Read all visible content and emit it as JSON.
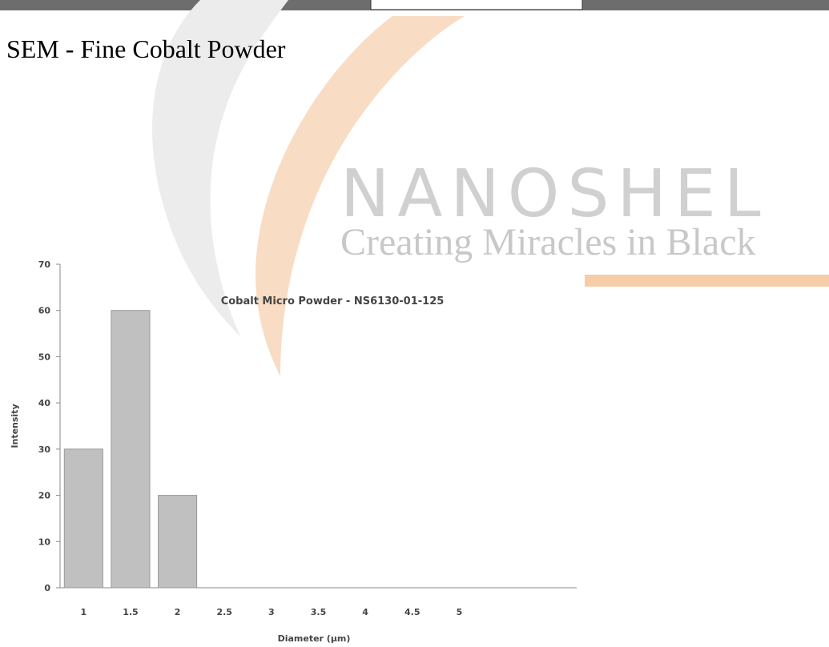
{
  "heading": "SEM - Fine Cobalt Powder",
  "watermark": {
    "brand": "NANOSHEL",
    "tagline": "Creating Miracles in Black"
  },
  "chart_data": {
    "type": "bar",
    "title": "Cobalt Micro Powder - NS6130-01-125",
    "x_label": "Diameter (µm)",
    "y_label": "Intensity",
    "categories": [
      "1",
      "1.5",
      "2",
      "2.5",
      "3",
      "3.5",
      "4",
      "4.5",
      "5",
      null,
      null
    ],
    "values": [
      30,
      60,
      20,
      0,
      0,
      0,
      0,
      0,
      0,
      null,
      null
    ],
    "color": "#c0c0c0",
    "ylim": [
      0,
      70
    ],
    "yticks": [
      0,
      10,
      20,
      30,
      40,
      50,
      60,
      70
    ],
    "grid": false
  }
}
